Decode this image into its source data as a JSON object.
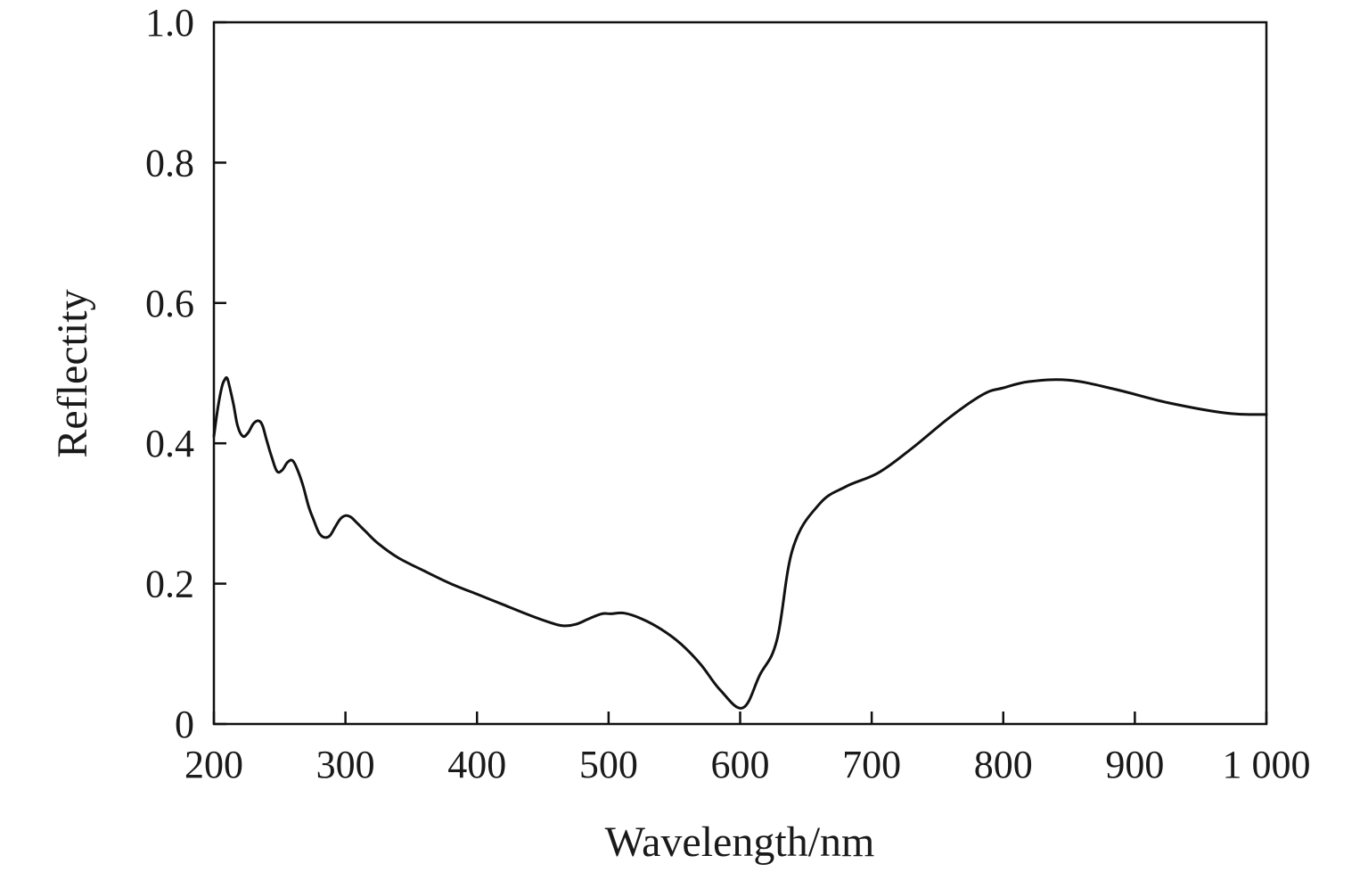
{
  "chart_data": {
    "type": "line",
    "xlabel": "Wavelength/nm",
    "ylabel": "Reflectity",
    "xlim": [
      200,
      1000
    ],
    "ylim": [
      0,
      1.0
    ],
    "grid": false,
    "legend": "none",
    "xticks": [
      {
        "value": 200,
        "label": "200"
      },
      {
        "value": 300,
        "label": "300"
      },
      {
        "value": 400,
        "label": "400"
      },
      {
        "value": 500,
        "label": "500"
      },
      {
        "value": 600,
        "label": "600"
      },
      {
        "value": 700,
        "label": "700"
      },
      {
        "value": 800,
        "label": "800"
      },
      {
        "value": 900,
        "label": "900"
      },
      {
        "value": 1000,
        "label": "1 000"
      }
    ],
    "yticks": [
      {
        "value": 0,
        "label": "0"
      },
      {
        "value": 0.2,
        "label": "0.2"
      },
      {
        "value": 0.4,
        "label": "0.4"
      },
      {
        "value": 0.6,
        "label": "0.6"
      },
      {
        "value": 0.8,
        "label": "0.8"
      },
      {
        "value": 1.0,
        "label": "1.0"
      }
    ],
    "line_color": "#111111",
    "series": [
      {
        "x": [
          200,
          203,
          206,
          208,
          210,
          212,
          215,
          218,
          222,
          226,
          230,
          234,
          237,
          240,
          244,
          248,
          252,
          256,
          260,
          264,
          268,
          272,
          276,
          280,
          284,
          288,
          292,
          296,
          300,
          304,
          308,
          315,
          325,
          340,
          360,
          380,
          400,
          420,
          440,
          455,
          465,
          475,
          485,
          495,
          502,
          512,
          525,
          540,
          555,
          570,
          585,
          602,
          615,
          628,
          640,
          660,
          680,
          705,
          730,
          760,
          785,
          800,
          820,
          850,
          885,
          925,
          970,
          1000
        ],
        "y": [
          0.41,
          0.45,
          0.48,
          0.49,
          0.493,
          0.48,
          0.455,
          0.425,
          0.41,
          0.415,
          0.428,
          0.432,
          0.425,
          0.405,
          0.38,
          0.36,
          0.362,
          0.373,
          0.375,
          0.36,
          0.338,
          0.31,
          0.29,
          0.272,
          0.266,
          0.268,
          0.28,
          0.292,
          0.297,
          0.295,
          0.288,
          0.275,
          0.257,
          0.237,
          0.218,
          0.2,
          0.185,
          0.17,
          0.155,
          0.145,
          0.14,
          0.142,
          0.15,
          0.157,
          0.157,
          0.158,
          0.15,
          0.135,
          0.114,
          0.085,
          0.048,
          0.023,
          0.07,
          0.12,
          0.25,
          0.313,
          0.338,
          0.358,
          0.392,
          0.438,
          0.47,
          0.479,
          0.488,
          0.49,
          0.477,
          0.458,
          0.443,
          0.441
        ]
      }
    ]
  }
}
